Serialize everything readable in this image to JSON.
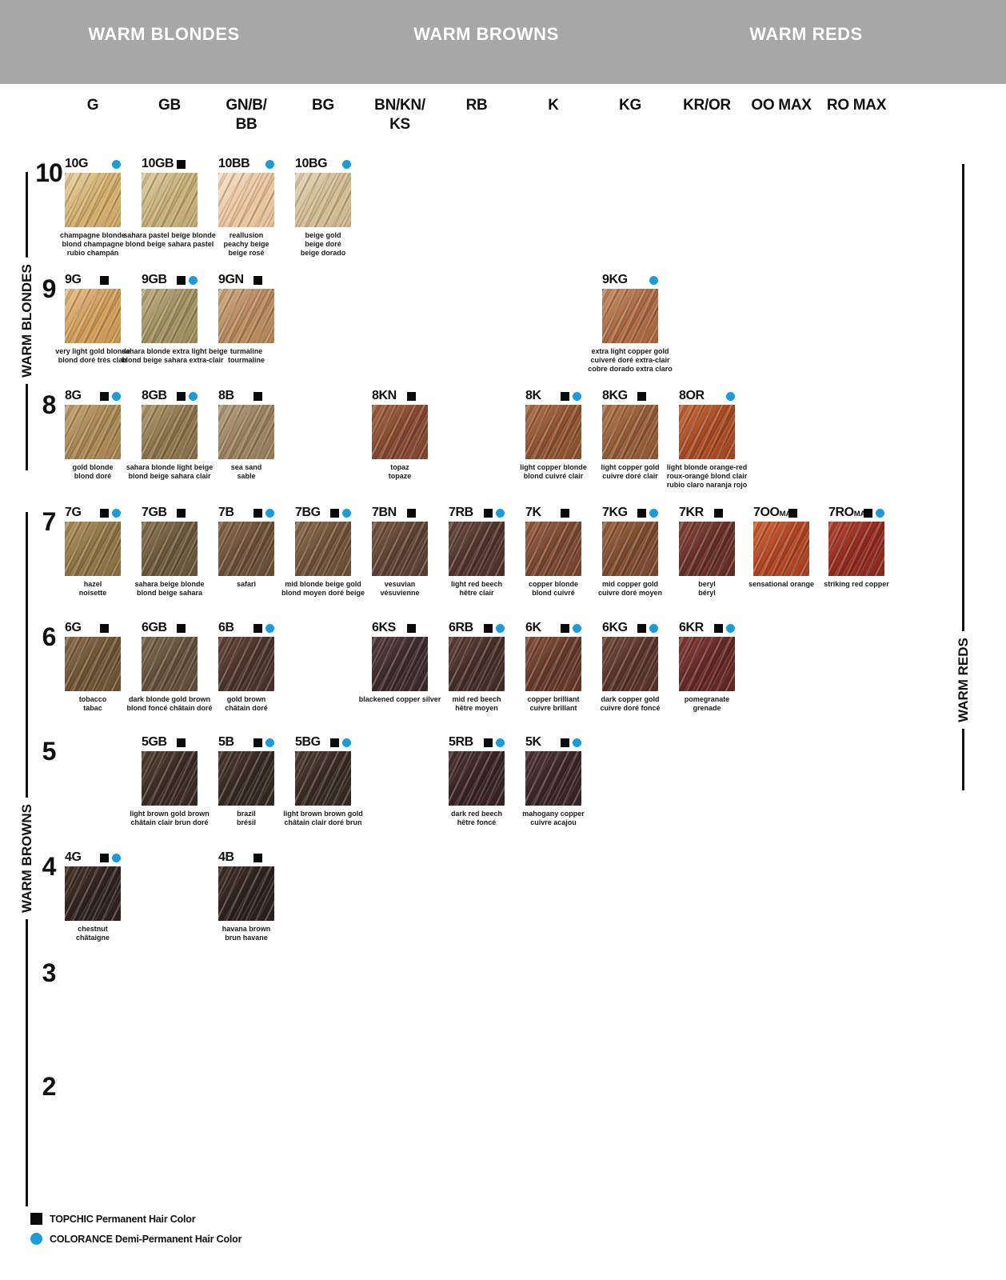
{
  "page": {
    "header_bar_color": "#a7a7a7",
    "sections": [
      "WARM BLONDES",
      "WARM BROWNS",
      "WARM REDS"
    ]
  },
  "side_labels": {
    "left_top": "WARM BLONDES",
    "left_bottom": "WARM BROWNS",
    "right": "WARM REDS"
  },
  "columns": [
    {
      "lines": [
        "G"
      ]
    },
    {
      "lines": [
        "GB"
      ]
    },
    {
      "lines": [
        "GN/B/",
        "BB"
      ]
    },
    {
      "lines": [
        "BG"
      ]
    },
    {
      "lines": [
        "BN/KN/",
        "KS"
      ]
    },
    {
      "lines": [
        "RB"
      ]
    },
    {
      "lines": [
        "K"
      ]
    },
    {
      "lines": [
        "KG"
      ]
    },
    {
      "lines": [
        "KR/OR"
      ]
    },
    {
      "lines": [
        "OO MAX"
      ]
    },
    {
      "lines": [
        "RO MAX"
      ]
    }
  ],
  "rows": [
    {
      "level": "10",
      "cells": [
        {
          "code": "10G",
          "col": 0,
          "topchic": false,
          "colorance": true,
          "c": "#d2ab66",
          "h": "#ecd4a2",
          "names": [
            "champagne blonde",
            "blond champagne",
            "rubio champán"
          ]
        },
        {
          "code": "10GB",
          "col": 1,
          "topchic": true,
          "colorance": false,
          "c": "#c6ae74",
          "h": "#e0cd9e",
          "names": [
            "sahara pastel beige blonde",
            "blond beige sahara pastel"
          ]
        },
        {
          "code": "10BB",
          "col": 2,
          "topchic": false,
          "colorance": true,
          "c": "#ecc49c",
          "h": "#f8e2c6",
          "names": [
            "reallusion",
            "peachy beige",
            "beige rosé"
          ]
        },
        {
          "code": "10BG",
          "col": 3,
          "topchic": false,
          "colorance": true,
          "c": "#d2bb90",
          "h": "#e6d6b4",
          "names": [
            "beige gold",
            "beige doré",
            "beige dorado"
          ]
        }
      ]
    },
    {
      "level": "9",
      "cells": [
        {
          "code": "9G",
          "col": 0,
          "topchic": true,
          "colorance": false,
          "c": "#d09a54",
          "h": "#e9c088",
          "names": [
            "very light gold blonde",
            "blond doré très clair"
          ]
        },
        {
          "code": "9GB",
          "col": 1,
          "topchic": true,
          "colorance": true,
          "c": "#a18e5d",
          "h": "#c0ae80",
          "names": [
            "sahara blonde extra light beige",
            "blond beige sahara extra-clair"
          ]
        },
        {
          "code": "9GN",
          "col": 2,
          "topchic": true,
          "colorance": false,
          "c": "#b7885a",
          "h": "#d2a97e",
          "names": [
            "turmaline",
            "tourmaline"
          ]
        },
        {
          "code": "9KG",
          "col": 7,
          "topchic": false,
          "colorance": true,
          "c": "#ab6840",
          "h": "#c98c60",
          "names": [
            "extra light copper gold",
            "cuiveré doré extra-clair",
            "cobre dorado extra claro"
          ]
        }
      ]
    },
    {
      "level": "8",
      "cells": [
        {
          "code": "8G",
          "col": 0,
          "topchic": true,
          "colorance": true,
          "c": "#a98550",
          "h": "#c5a370",
          "names": [
            "gold blonde",
            "blond doré"
          ]
        },
        {
          "code": "8GB",
          "col": 1,
          "topchic": true,
          "colorance": true,
          "c": "#8b7248",
          "h": "#b29a6c",
          "names": [
            "sahara blonde light beige",
            "blond beige sahara clair"
          ]
        },
        {
          "code": "8B",
          "col": 2,
          "topchic": true,
          "colorance": false,
          "c": "#9a7f5d",
          "h": "#b59d7c",
          "names": [
            "sea sand",
            "sable"
          ]
        },
        {
          "code": "8KN",
          "col": 4,
          "topchic": true,
          "colorance": false,
          "c": "#84462d",
          "h": "#a5663f",
          "names": [
            "topaz",
            "topaze"
          ]
        },
        {
          "code": "8K",
          "col": 6,
          "topchic": true,
          "colorance": true,
          "c": "#8e512e",
          "h": "#ad7048",
          "names": [
            "light copper blonde",
            "blond cuivré clair"
          ]
        },
        {
          "code": "8KG",
          "col": 7,
          "topchic": true,
          "colorance": false,
          "c": "#935933",
          "h": "#b1764a",
          "names": [
            "light copper gold",
            "cuivre doré clair"
          ]
        },
        {
          "code": "8OR",
          "col": 8,
          "topchic": false,
          "colorance": true,
          "c": "#a74820",
          "h": "#c46a3a",
          "names": [
            "light blonde orange-red",
            "roux-orangé blond clair",
            "rubio claro naranja rojo"
          ]
        }
      ]
    },
    {
      "level": "7",
      "cells": [
        {
          "code": "7G",
          "col": 0,
          "topchic": true,
          "colorance": true,
          "c": "#8d7141",
          "h": "#b0945c",
          "names": [
            "hazel",
            "noisette"
          ]
        },
        {
          "code": "7GB",
          "col": 1,
          "topchic": true,
          "colorance": false,
          "c": "#6b5538",
          "h": "#8a7350",
          "names": [
            "sahara beige blonde",
            "blond beige sahara"
          ]
        },
        {
          "code": "7B",
          "col": 2,
          "topchic": true,
          "colorance": true,
          "c": "#6a4d36",
          "h": "#87684a",
          "names": [
            "safari"
          ]
        },
        {
          "code": "7BG",
          "col": 3,
          "topchic": true,
          "colorance": true,
          "c": "#6d4f36",
          "h": "#8c6c4c",
          "names": [
            "mid blonde beige gold",
            "blond moyen doré beige"
          ]
        },
        {
          "code": "7BN",
          "col": 4,
          "topchic": true,
          "colorance": false,
          "c": "#5b3f2e",
          "h": "#7a5a42",
          "names": [
            "vesuvian",
            "vésuvienne"
          ]
        },
        {
          "code": "7RB",
          "col": 5,
          "topchic": true,
          "colorance": true,
          "c": "#4e3129",
          "h": "#6b4a3c",
          "names": [
            "light red beech",
            "hêtre clair"
          ]
        },
        {
          "code": "7K",
          "col": 6,
          "topchic": true,
          "colorance": false,
          "c": "#79452e",
          "h": "#985f40",
          "names": [
            "copper blonde",
            "blond cuivré"
          ]
        },
        {
          "code": "7KG",
          "col": 7,
          "topchic": true,
          "colorance": true,
          "c": "#7d482b",
          "h": "#9d6440",
          "names": [
            "mid copper gold",
            "cuivre doré moyen"
          ]
        },
        {
          "code": "7KR",
          "col": 8,
          "topchic": true,
          "colorance": false,
          "c": "#652c24",
          "h": "#854538",
          "names": [
            "beryl",
            "béryl"
          ]
        },
        {
          "code": "7OO",
          "suffix": "MAX",
          "col": 9,
          "topchic": true,
          "colorance": false,
          "c": "#ae4221",
          "h": "#cd6436",
          "names": [
            "sensational orange"
          ]
        },
        {
          "code": "7RO",
          "suffix": "MAX",
          "col": 10,
          "topchic": true,
          "colorance": true,
          "c": "#91281d",
          "h": "#b2452f",
          "names": [
            "striking red copper"
          ]
        }
      ]
    },
    {
      "level": "6",
      "cells": [
        {
          "code": "6G",
          "col": 0,
          "topchic": true,
          "colorance": false,
          "c": "#6c5232",
          "h": "#8a6c46",
          "names": [
            "tobacco",
            "tabac"
          ]
        },
        {
          "code": "6GB",
          "col": 1,
          "topchic": true,
          "colorance": false,
          "c": "#604e38",
          "h": "#7c684c",
          "names": [
            "dark blonde gold brown",
            "blond foncé châtain doré"
          ]
        },
        {
          "code": "6B",
          "col": 2,
          "topchic": true,
          "colorance": true,
          "c": "#4a3128",
          "h": "#664638",
          "names": [
            "gold brown",
            "châtain doré"
          ]
        },
        {
          "code": "6KS",
          "col": 4,
          "topchic": true,
          "colorance": false,
          "c": "#3b272a",
          "h": "#553a3c",
          "names": [
            "blackened copper silver"
          ]
        },
        {
          "code": "6RB",
          "col": 5,
          "topchic": true,
          "colorance": true,
          "c": "#452b25",
          "h": "#5f4034",
          "names": [
            "mid red beech",
            "hêtre moyen"
          ]
        },
        {
          "code": "6K",
          "col": 6,
          "topchic": true,
          "colorance": true,
          "c": "#643628",
          "h": "#855038",
          "names": [
            "copper brilliant",
            "cuivre brillant"
          ]
        },
        {
          "code": "6KG",
          "col": 7,
          "topchic": true,
          "colorance": true,
          "c": "#563128",
          "h": "#744838",
          "names": [
            "dark copper gold",
            "cuivre doré foncé"
          ]
        },
        {
          "code": "6KR",
          "col": 8,
          "topchic": true,
          "colorance": true,
          "c": "#632624",
          "h": "#853c34",
          "names": [
            "pomegranate",
            "grenade"
          ]
        }
      ]
    },
    {
      "level": "5",
      "cells": [
        {
          "code": "5GB",
          "col": 1,
          "topchic": true,
          "colorance": false,
          "c": "#382a21",
          "h": "#52402e",
          "names": [
            "light brown gold brown",
            "châtain clair brun doré"
          ]
        },
        {
          "code": "5B",
          "col": 2,
          "topchic": true,
          "colorance": true,
          "c": "#332620",
          "h": "#4a382c",
          "names": [
            "brazil",
            "brésil"
          ]
        },
        {
          "code": "5BG",
          "col": 3,
          "topchic": true,
          "colorance": true,
          "c": "#362821",
          "h": "#4e3c2e",
          "names": [
            "light brown brown gold",
            "châtain clair doré brun"
          ]
        },
        {
          "code": "5RB",
          "col": 5,
          "topchic": true,
          "colorance": true,
          "c": "#372122",
          "h": "#4f3230",
          "names": [
            "dark red beech",
            "hêtre foncé"
          ]
        },
        {
          "code": "5K",
          "col": 6,
          "topchic": true,
          "colorance": true,
          "c": "#392326",
          "h": "#523334",
          "names": [
            "mahogany copper",
            "cuivre acajou"
          ]
        }
      ]
    },
    {
      "level": "4",
      "cells": [
        {
          "code": "4G",
          "col": 0,
          "topchic": true,
          "colorance": true,
          "c": "#2e201c",
          "h": "#463328",
          "names": [
            "chestnut",
            "châtaigne"
          ]
        },
        {
          "code": "4B",
          "col": 2,
          "topchic": true,
          "colorance": false,
          "c": "#2b1e1b",
          "h": "#413026",
          "names": [
            "havana brown",
            "brun havane"
          ]
        }
      ]
    },
    {
      "level": "3",
      "cells": []
    },
    {
      "level": "2",
      "cells": []
    }
  ],
  "legend": [
    {
      "type": "square",
      "label": "TOPCHIC Permanent Hair Color"
    },
    {
      "type": "dot",
      "label": "COLORANCE Demi-Permanent Hair Color"
    }
  ],
  "colors": {
    "topchic_mark": "#0a0a0a",
    "colorance_mark": "#1b9cd8"
  }
}
